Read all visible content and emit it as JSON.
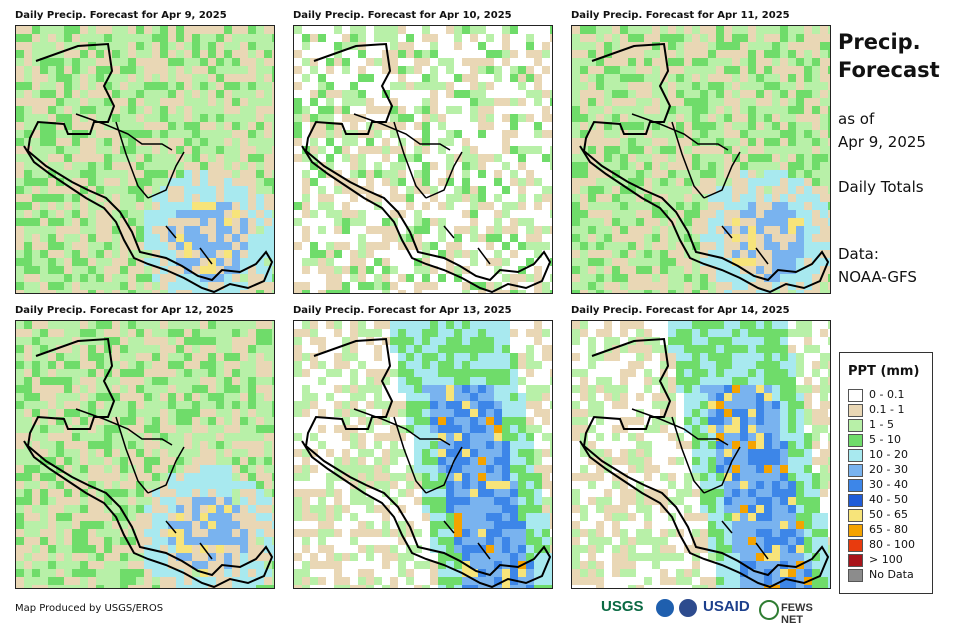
{
  "panels": [
    {
      "title": "Daily Precip. Forecast for Apr 9, 2025"
    },
    {
      "title": "Daily Precip. Forecast for Apr 10, 2025"
    },
    {
      "title": "Daily Precip. Forecast for Apr 11, 2025"
    },
    {
      "title": "Daily Precip. Forecast for Apr 12, 2025"
    },
    {
      "title": "Daily Precip. Forecast for Apr 13, 2025"
    },
    {
      "title": "Daily Precip. Forecast for Apr 14, 2025"
    }
  ],
  "side": {
    "title_line1": "Precip.",
    "title_line2": "Forecast",
    "asof_line1": "as of",
    "asof_line2": "Apr 9, 2025",
    "totals": "Daily Totals",
    "data_line1": "Data:",
    "data_line2": "NOAA-GFS"
  },
  "legend": {
    "title": "PPT (mm)",
    "items": [
      {
        "label": "0 - 0.1",
        "color": "#ffffff"
      },
      {
        "label": "0.1 - 1",
        "color": "#e9d7b5"
      },
      {
        "label": "1 - 5",
        "color": "#b8f0a8"
      },
      {
        "label": "5 - 10",
        "color": "#6fdc6a"
      },
      {
        "label": "10 - 20",
        "color": "#a8e9ef"
      },
      {
        "label": "20 - 30",
        "color": "#79b3ef"
      },
      {
        "label": "30 - 40",
        "color": "#3d86e8"
      },
      {
        "label": "40 - 50",
        "color": "#1f5cd8"
      },
      {
        "label": "50 - 65",
        "color": "#f7e47a"
      },
      {
        "label": "65 - 80",
        "color": "#f4a300"
      },
      {
        "label": "80 - 100",
        "color": "#e83b0e"
      },
      {
        "label": "> 100",
        "color": "#a8141a"
      },
      {
        "label": "No Data",
        "color": "#8c8c8c"
      }
    ]
  },
  "credit": "Map Produced by USGS/EROS",
  "logos": {
    "usgs": "USGS",
    "usaid": "USAID",
    "fews": "FEWS NET"
  }
}
